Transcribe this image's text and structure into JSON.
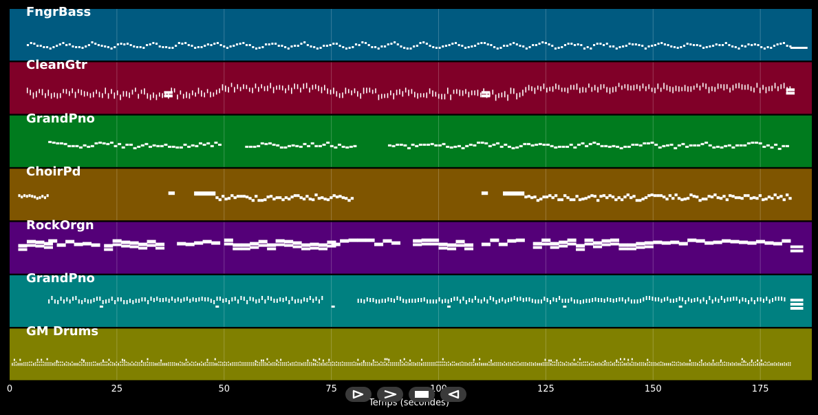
{
  "tracks": [
    {
      "name": "FngrBass",
      "color": "#005a80",
      "pattern": "bass"
    },
    {
      "name": "CleanGtr",
      "color": "#800028",
      "pattern": "guitar"
    },
    {
      "name": "GrandPno",
      "color": "#007b1e",
      "pattern": "piano"
    },
    {
      "name": "ChoirPd",
      "color": "#7f5500",
      "pattern": "choir"
    },
    {
      "name": "RockOrgn",
      "color": "#540078",
      "pattern": "organ"
    },
    {
      "name": "GrandPno",
      "color": "#008080",
      "pattern": "piano2"
    },
    {
      "name": "GM Drums",
      "color": "#808000",
      "pattern": "drums"
    }
  ],
  "x_axis": {
    "title": "Temps (secondes)",
    "ticks": [
      0,
      25,
      50,
      75,
      100,
      125,
      150,
      175
    ],
    "range": [
      0,
      187
    ]
  },
  "controls": [
    {
      "name": "play-button",
      "icon": "play-outline-icon"
    },
    {
      "name": "fast-forward-button",
      "icon": "chevron-right-icon"
    },
    {
      "name": "stop-button",
      "icon": "stop-icon"
    },
    {
      "name": "rewind-button",
      "icon": "play-reverse-icon"
    }
  ]
}
